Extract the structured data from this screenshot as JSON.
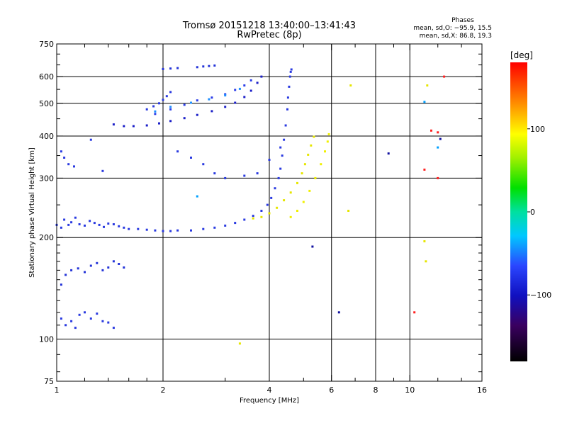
{
  "chart_data": {
    "type": "scatter",
    "title_line1": "Tromsø 20151218 13:40:00–13:41:43",
    "title_line2": "RwPretec (8p)",
    "stats": {
      "heading": "Phases",
      "o_line": "mean, sd,O: −95.9, 15.5",
      "x_line": "mean, sd,X:  86.8, 19.3"
    },
    "xlabel": "Frequency [MHz]",
    "ylabel": "Stationary phase Virtual Height [km]",
    "x_scale": "log",
    "y_scale": "log",
    "xlim": [
      1,
      16
    ],
    "ylim": [
      75,
      750
    ],
    "x_ticks": [
      1,
      2,
      4,
      6,
      8,
      10,
      16
    ],
    "x_tick_labels": [
      "1",
      "2",
      "4",
      "6",
      "8",
      "10",
      "16"
    ],
    "x_minor_ticks": [
      1.2,
      1.4,
      1.6,
      1.8,
      3,
      5,
      7,
      9,
      12,
      14
    ],
    "y_ticks": [
      75,
      100,
      200,
      300,
      400,
      500,
      600,
      750
    ],
    "y_tick_labels": [
      "75",
      "100",
      "200",
      "300",
      "400",
      "500",
      "600",
      "750"
    ],
    "y_minor_ticks": [
      80,
      90,
      110,
      120,
      130,
      140,
      150,
      160,
      170,
      180,
      190,
      250,
      350,
      450,
      550,
      650,
      700
    ],
    "grid_x": [
      2,
      4,
      6,
      8,
      10
    ],
    "grid_y": [
      100,
      200,
      300,
      400,
      500,
      600
    ],
    "colorbar": {
      "label": "[deg]",
      "range": [
        -180,
        180
      ],
      "ticks": [
        100,
        0,
        -100
      ],
      "tick_labels": [
        "100",
        "0",
        "−100"
      ]
    },
    "series": [
      {
        "name": "",
        "phase": -95,
        "color": "#2a3ae0",
        "points": [
          [
            1.0,
            218
          ],
          [
            1.03,
            214
          ],
          [
            1.05,
            226
          ],
          [
            1.08,
            218
          ],
          [
            1.1,
            222
          ],
          [
            1.13,
            229
          ],
          [
            1.16,
            219
          ],
          [
            1.2,
            217
          ],
          [
            1.24,
            224
          ],
          [
            1.28,
            221
          ],
          [
            1.32,
            218
          ],
          [
            1.36,
            215
          ],
          [
            1.4,
            220
          ],
          [
            1.45,
            219
          ],
          [
            1.5,
            216
          ],
          [
            1.55,
            214
          ],
          [
            1.6,
            212
          ],
          [
            1.7,
            212
          ],
          [
            1.8,
            211
          ],
          [
            1.9,
            210
          ],
          [
            2.0,
            209
          ],
          [
            2.1,
            209
          ],
          [
            2.2,
            210
          ],
          [
            2.4,
            210
          ],
          [
            2.6,
            212
          ],
          [
            2.8,
            214
          ],
          [
            3.0,
            217
          ],
          [
            3.2,
            221
          ],
          [
            3.4,
            226
          ],
          [
            3.6,
            232
          ],
          [
            3.8,
            240
          ],
          [
            3.95,
            250
          ],
          [
            4.05,
            262
          ],
          [
            4.15,
            280
          ],
          [
            4.25,
            300
          ],
          [
            4.3,
            320
          ],
          [
            4.35,
            350
          ],
          [
            4.4,
            390
          ],
          [
            4.45,
            430
          ],
          [
            4.5,
            480
          ],
          [
            4.52,
            520
          ],
          [
            4.55,
            560
          ],
          [
            4.58,
            600
          ],
          [
            4.6,
            620
          ],
          [
            4.62,
            630
          ]
        ]
      },
      {
        "name": "",
        "phase": -110,
        "color": "#1c20c8",
        "points": [
          [
            1.45,
            433
          ],
          [
            1.55,
            428
          ],
          [
            1.65,
            428
          ],
          [
            1.8,
            430
          ],
          [
            1.95,
            436
          ],
          [
            2.1,
            443
          ],
          [
            2.3,
            452
          ],
          [
            2.5,
            462
          ],
          [
            2.75,
            474
          ],
          [
            3.0,
            488
          ],
          [
            3.2,
            502
          ],
          [
            3.4,
            522
          ],
          [
            3.55,
            545
          ],
          [
            3.7,
            575
          ],
          [
            3.8,
            600
          ]
        ]
      },
      {
        "name": "",
        "phase": -90,
        "color": "#2c3ee8",
        "points": [
          [
            1.9,
            465
          ],
          [
            2.1,
            480
          ],
          [
            2.3,
            495
          ],
          [
            2.5,
            510
          ],
          [
            2.75,
            520
          ],
          [
            3.0,
            532
          ],
          [
            3.2,
            548
          ],
          [
            3.4,
            565
          ],
          [
            3.55,
            585
          ]
        ]
      },
      {
        "name": "",
        "phase": -80,
        "color": "#1f8fff",
        "points": [
          [
            1.9,
            473
          ],
          [
            2.1,
            488
          ],
          [
            2.4,
            502
          ],
          [
            2.7,
            514
          ],
          [
            3.0,
            528
          ],
          [
            3.3,
            552
          ]
        ]
      },
      {
        "name": "",
        "phase": -95,
        "color": "#2a3ae0",
        "points": [
          [
            1.8,
            480
          ],
          [
            1.88,
            490
          ],
          [
            1.95,
            500
          ],
          [
            2.0,
            512
          ],
          [
            2.05,
            525
          ],
          [
            2.1,
            540
          ]
        ]
      },
      {
        "name": "",
        "phase": -100,
        "color": "#2434d8",
        "points": [
          [
            2.0,
            632
          ],
          [
            2.1,
            634
          ],
          [
            2.2,
            636
          ],
          [
            2.5,
            640
          ],
          [
            2.6,
            643
          ],
          [
            2.7,
            645
          ],
          [
            2.8,
            647
          ]
        ]
      },
      {
        "name": "",
        "phase": 95,
        "color": "#e6e600",
        "points": [
          [
            3.6,
            228
          ],
          [
            3.8,
            230
          ],
          [
            4.0,
            236
          ],
          [
            4.2,
            245
          ],
          [
            4.4,
            258
          ],
          [
            4.6,
            272
          ],
          [
            4.8,
            290
          ],
          [
            4.95,
            310
          ],
          [
            5.05,
            330
          ],
          [
            5.15,
            352
          ],
          [
            5.25,
            375
          ],
          [
            5.35,
            398
          ]
        ]
      },
      {
        "name": "",
        "phase": 100,
        "color": "#f0f000",
        "points": [
          [
            4.6,
            230
          ],
          [
            4.8,
            240
          ],
          [
            5.0,
            255
          ],
          [
            5.2,
            275
          ],
          [
            5.4,
            300
          ],
          [
            5.6,
            330
          ],
          [
            5.75,
            360
          ],
          [
            5.85,
            385
          ],
          [
            5.9,
            405
          ]
        ]
      },
      {
        "name": "",
        "phase": -100,
        "color": "#2434d8",
        "points": [
          [
            1.03,
            145
          ],
          [
            1.06,
            155
          ],
          [
            1.1,
            160
          ],
          [
            1.15,
            162
          ],
          [
            1.2,
            158
          ],
          [
            1.25,
            165
          ],
          [
            1.3,
            168
          ],
          [
            1.35,
            160
          ],
          [
            1.4,
            163
          ],
          [
            1.45,
            170
          ],
          [
            1.5,
            167
          ],
          [
            1.55,
            163
          ]
        ]
      },
      {
        "name": "",
        "phase": -95,
        "color": "#2a3ae0",
        "points": [
          [
            1.03,
            115
          ],
          [
            1.06,
            110
          ],
          [
            1.1,
            113
          ],
          [
            1.13,
            108
          ],
          [
            1.16,
            118
          ],
          [
            1.2,
            120
          ],
          [
            1.25,
            115
          ],
          [
            1.3,
            119
          ],
          [
            1.35,
            113
          ],
          [
            1.4,
            112
          ],
          [
            1.45,
            108
          ]
        ]
      },
      {
        "name": "",
        "phase": -95,
        "color": "#2a3ae0",
        "points": [
          [
            1.03,
            360
          ],
          [
            1.05,
            345
          ],
          [
            1.08,
            330
          ],
          [
            1.12,
            325
          ],
          [
            1.25,
            390
          ],
          [
            1.35,
            315
          ],
          [
            2.2,
            360
          ],
          [
            2.4,
            345
          ],
          [
            2.6,
            330
          ],
          [
            2.8,
            310
          ],
          [
            3.0,
            300
          ],
          [
            3.4,
            305
          ],
          [
            3.7,
            310
          ],
          [
            4.0,
            340
          ],
          [
            4.3,
            370
          ]
        ]
      },
      {
        "name": "",
        "phase": 95,
        "color": "#e6e600",
        "points": [
          [
            6.7,
            240
          ],
          [
            6.8,
            565
          ],
          [
            11.0,
            195
          ],
          [
            11.1,
            170
          ],
          [
            11.2,
            565
          ],
          [
            3.3,
            97
          ]
        ]
      },
      {
        "name": "",
        "phase": 140,
        "color": "#ff2020",
        "points": [
          [
            11.0,
            318
          ],
          [
            11.5,
            415
          ],
          [
            12.0,
            410
          ],
          [
            10.3,
            120
          ],
          [
            12.5,
            600
          ],
          [
            12.0,
            300
          ]
        ]
      },
      {
        "name": "",
        "phase": -120,
        "color": "#1010a0",
        "points": [
          [
            5.3,
            188
          ],
          [
            6.3,
            120
          ],
          [
            8.7,
            355
          ],
          [
            12.2,
            392
          ]
        ]
      },
      {
        "name": "",
        "phase": -60,
        "color": "#00a0ff",
        "points": [
          [
            11.0,
            505
          ],
          [
            12.0,
            370
          ],
          [
            2.5,
            265
          ]
        ]
      }
    ]
  }
}
